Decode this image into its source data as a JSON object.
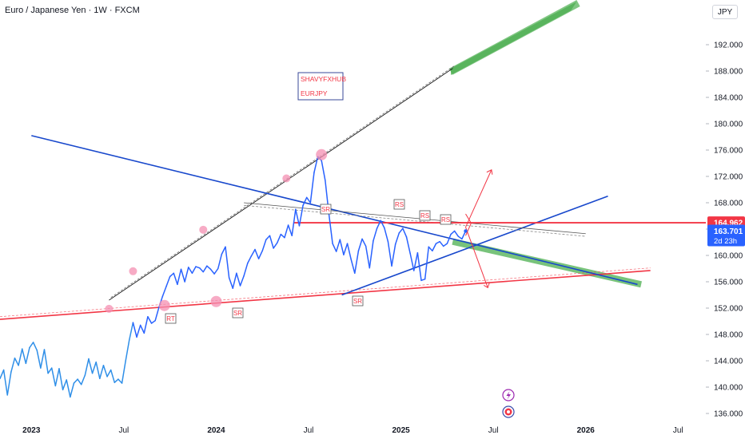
{
  "header": {
    "title": "Euro / Japanese Yen · 1W · FXCM",
    "currency": "JPY"
  },
  "annotation_box": {
    "line1": "SHAVYFXHUB",
    "line2": "EURJPY"
  },
  "tags": {
    "sr": "SR",
    "rs": "RS",
    "rt": "RT"
  },
  "price_badges": {
    "level": "164.962",
    "last": "163.701",
    "countdown": "2d 23h"
  },
  "colors": {
    "price": "#2962ff",
    "support": "#f23645",
    "trend": "#1848cc",
    "zone": "#4caf50",
    "marker": "#f48fb1",
    "projection": "#f23645"
  },
  "icons": {
    "bolt": "lightning-bolt-icon",
    "target": "target-icon"
  },
  "chart_data": {
    "type": "line",
    "title": "Euro / Japanese Yen · 1W · FXCM",
    "xlabel": "",
    "ylabel": "",
    "x_ticks": [
      {
        "label": "2023",
        "x": 2023.0
      },
      {
        "label": "Jul",
        "x": 2023.5
      },
      {
        "label": "2024",
        "x": 2024.0
      },
      {
        "label": "Jul",
        "x": 2024.5
      },
      {
        "label": "2025",
        "x": 2025.0
      },
      {
        "label": "Jul",
        "x": 2025.5
      },
      {
        "label": "2026",
        "x": 2026.0
      },
      {
        "label": "Jul",
        "x": 2026.5
      }
    ],
    "y_ticks": [
      136,
      140,
      144,
      148,
      152,
      156,
      160,
      164,
      168,
      172,
      176,
      180,
      184,
      188,
      192
    ],
    "y_tick_labels": [
      "136.000",
      "140.000",
      "144.000",
      "148.000",
      "152.000",
      "156.000",
      "160.000",
      "164.000",
      "168.000",
      "172.000",
      "176.000",
      "180.000",
      "184.000",
      "188.000",
      "192.000"
    ],
    "ylim": [
      135,
      197
    ],
    "xlim": [
      2022.83,
      2026.65
    ],
    "series": [
      {
        "values": [
          [
            2022.83,
            141.3
          ],
          [
            2022.85,
            142.6
          ],
          [
            2022.87,
            138.8
          ],
          [
            2022.89,
            142.3
          ],
          [
            2022.91,
            144.4
          ],
          [
            2022.93,
            143.3
          ],
          [
            2022.95,
            145.8
          ],
          [
            2022.97,
            143.6
          ],
          [
            2022.99,
            146.0
          ],
          [
            2023.01,
            146.8
          ],
          [
            2023.03,
            145.6
          ],
          [
            2023.05,
            142.9
          ],
          [
            2023.07,
            145.7
          ],
          [
            2023.09,
            142.1
          ],
          [
            2023.11,
            142.9
          ],
          [
            2023.13,
            140.2
          ],
          [
            2023.15,
            142.8
          ],
          [
            2023.17,
            139.6
          ],
          [
            2023.19,
            141.1
          ],
          [
            2023.21,
            138.5
          ],
          [
            2023.23,
            140.6
          ],
          [
            2023.25,
            141.2
          ],
          [
            2023.27,
            140.4
          ],
          [
            2023.29,
            141.8
          ],
          [
            2023.31,
            144.3
          ],
          [
            2023.33,
            142.1
          ],
          [
            2023.35,
            143.8
          ],
          [
            2023.37,
            141.3
          ],
          [
            2023.39,
            143.3
          ],
          [
            2023.41,
            141.6
          ],
          [
            2023.43,
            142.6
          ],
          [
            2023.45,
            140.7
          ],
          [
            2023.47,
            141.2
          ],
          [
            2023.49,
            140.6
          ],
          [
            2023.51,
            144.0
          ],
          [
            2023.53,
            147.2
          ],
          [
            2023.55,
            149.8
          ],
          [
            2023.57,
            147.6
          ],
          [
            2023.59,
            149.4
          ],
          [
            2023.61,
            148.2
          ],
          [
            2023.63,
            150.7
          ],
          [
            2023.65,
            149.7
          ],
          [
            2023.67,
            150.1
          ],
          [
            2023.69,
            152.1
          ],
          [
            2023.71,
            153.8
          ],
          [
            2023.73,
            155.3
          ],
          [
            2023.75,
            156.8
          ],
          [
            2023.77,
            157.3
          ],
          [
            2023.79,
            155.6
          ],
          [
            2023.81,
            157.9
          ],
          [
            2023.83,
            156.0
          ],
          [
            2023.85,
            158.2
          ],
          [
            2023.87,
            157.3
          ],
          [
            2023.89,
            158.3
          ],
          [
            2023.91,
            158.1
          ],
          [
            2023.93,
            157.5
          ],
          [
            2023.95,
            158.4
          ],
          [
            2023.97,
            157.9
          ],
          [
            2023.99,
            157.2
          ],
          [
            2024.01,
            158.0
          ],
          [
            2024.03,
            160.2
          ],
          [
            2024.05,
            161.3
          ],
          [
            2024.07,
            156.6
          ],
          [
            2024.09,
            155.0
          ],
          [
            2024.11,
            157.3
          ],
          [
            2024.13,
            155.4
          ],
          [
            2024.15,
            156.9
          ],
          [
            2024.17,
            158.8
          ],
          [
            2024.19,
            159.9
          ],
          [
            2024.21,
            160.9
          ],
          [
            2024.23,
            159.5
          ],
          [
            2024.25,
            160.7
          ],
          [
            2024.27,
            162.4
          ],
          [
            2024.29,
            163.0
          ],
          [
            2024.31,
            161.1
          ],
          [
            2024.33,
            161.9
          ],
          [
            2024.35,
            163.2
          ],
          [
            2024.37,
            162.7
          ],
          [
            2024.39,
            164.6
          ],
          [
            2024.41,
            163.0
          ],
          [
            2024.43,
            167.0
          ],
          [
            2024.45,
            164.5
          ],
          [
            2024.47,
            167.6
          ],
          [
            2024.49,
            168.8
          ],
          [
            2024.51,
            168.0
          ],
          [
            2024.53,
            172.6
          ],
          [
            2024.55,
            175.0
          ],
          [
            2024.57,
            174.4
          ],
          [
            2024.59,
            171.4
          ],
          [
            2024.61,
            166.3
          ],
          [
            2024.63,
            161.8
          ],
          [
            2024.65,
            160.6
          ],
          [
            2024.67,
            162.4
          ],
          [
            2024.69,
            160.1
          ],
          [
            2024.71,
            161.8
          ],
          [
            2024.73,
            159.4
          ],
          [
            2024.75,
            157.3
          ],
          [
            2024.77,
            160.7
          ],
          [
            2024.79,
            162.5
          ],
          [
            2024.81,
            161.4
          ],
          [
            2024.83,
            158.1
          ],
          [
            2024.85,
            162.2
          ],
          [
            2024.87,
            164.1
          ],
          [
            2024.89,
            165.3
          ],
          [
            2024.91,
            164.2
          ],
          [
            2024.93,
            162.1
          ],
          [
            2024.95,
            158.4
          ],
          [
            2024.97,
            161.7
          ],
          [
            2024.99,
            163.4
          ],
          [
            2025.01,
            164.1
          ],
          [
            2025.03,
            162.8
          ],
          [
            2025.05,
            160.3
          ],
          [
            2025.07,
            157.7
          ],
          [
            2025.09,
            160.4
          ],
          [
            2025.11,
            156.2
          ],
          [
            2025.13,
            156.4
          ],
          [
            2025.15,
            161.3
          ],
          [
            2025.17,
            160.7
          ],
          [
            2025.19,
            161.8
          ],
          [
            2025.21,
            162.1
          ],
          [
            2025.23,
            161.4
          ],
          [
            2025.25,
            161.8
          ],
          [
            2025.27,
            163.2
          ],
          [
            2025.29,
            163.7
          ],
          [
            2025.31,
            162.9
          ],
          [
            2025.33,
            162.5
          ],
          [
            2025.35,
            163.7
          ]
        ]
      }
    ],
    "annotations": [
      "SHAVYFXHUB",
      "EURJPY",
      "SR",
      "RS",
      "RT"
    ],
    "horizontal_level": 164.962,
    "last_price": 163.701,
    "grid": false,
    "legend": "none"
  }
}
